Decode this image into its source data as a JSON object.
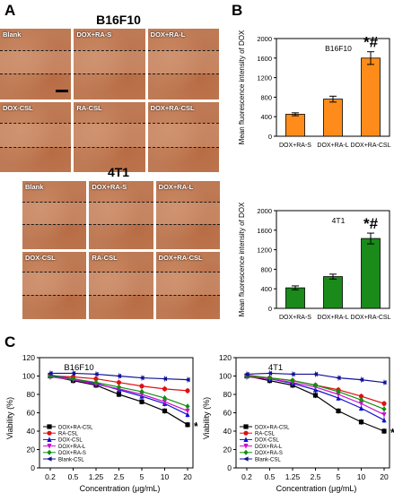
{
  "panels": {
    "A": "A",
    "B": "B",
    "C": "C"
  },
  "wound_healing": {
    "groups": [
      {
        "title": "B16F10",
        "tiles": [
          "Blank",
          "DOX+RA-S",
          "DOX+RA-L",
          "DOX-CSL",
          "RA-CSL",
          "DOX+RA-CSL"
        ]
      },
      {
        "title": "4T1",
        "tiles": [
          "Blank",
          "DOX+RA-S",
          "DOX+RA-L",
          "DOX-CSL",
          "RA-CSL",
          "DOX+RA-CSL"
        ]
      }
    ]
  },
  "chart_data": [
    {
      "type": "bar",
      "title": "B16F10",
      "ylabel": "Mean fluorescence intensity of DOX",
      "categories": [
        "DOX+RA-S",
        "DOX+RA-L",
        "DOX+RA-CSL"
      ],
      "values": [
        450,
        760,
        1600
      ],
      "errors": [
        30,
        60,
        130
      ],
      "ylim": [
        0,
        2000
      ],
      "yticks": [
        0,
        400,
        800,
        1200,
        1600,
        2000
      ],
      "color": "#ff8c1a",
      "annotation": "*#"
    },
    {
      "type": "bar",
      "title": "4T1",
      "ylabel": "Mean fluorescence intensity of DOX",
      "categories": [
        "DOX+RA-S",
        "DOX+RA-L",
        "DOX+RA-CSL"
      ],
      "values": [
        420,
        650,
        1430
      ],
      "errors": [
        40,
        50,
        110
      ],
      "ylim": [
        0,
        2000
      ],
      "yticks": [
        0,
        400,
        800,
        1200,
        1600,
        2000
      ],
      "color": "#1a8a1a",
      "annotation": "*#"
    },
    {
      "type": "line",
      "title": "B16F10",
      "xlabel": "Concentration (μg/mL)",
      "ylabel": "Viability (%)",
      "categories": [
        "0.2",
        "0.5",
        "1.25",
        "2.5",
        "5",
        "10",
        "20"
      ],
      "ylim": [
        0,
        120
      ],
      "yticks": [
        0,
        20,
        40,
        60,
        80,
        100,
        120
      ],
      "annotation": "*",
      "series": [
        {
          "name": "DOX+RA-CSL",
          "color": "#000000",
          "marker": "square",
          "values": [
            100,
            95,
            90,
            80,
            72,
            62,
            47
          ]
        },
        {
          "name": "RA-CSL",
          "color": "#e01010",
          "marker": "circle",
          "values": [
            100,
            99,
            97,
            93,
            89,
            86,
            84
          ]
        },
        {
          "name": "DOX-CSL",
          "color": "#1010d0",
          "marker": "triangle-up",
          "values": [
            101,
            97,
            92,
            85,
            78,
            70,
            58
          ]
        },
        {
          "name": "DOX+RA-L",
          "color": "#cc10cc",
          "marker": "triangle-down",
          "values": [
            99,
            96,
            91,
            86,
            80,
            72,
            62
          ]
        },
        {
          "name": "DOX+RA-S",
          "color": "#109010",
          "marker": "diamond",
          "values": [
            100,
            97,
            93,
            88,
            83,
            76,
            67
          ]
        },
        {
          "name": "Blank-CSL",
          "color": "#10109a",
          "marker": "triangle-left",
          "values": [
            103,
            103,
            102,
            100,
            98,
            97,
            96
          ]
        }
      ]
    },
    {
      "type": "line",
      "title": "4T1",
      "xlabel": "Concentration (μg/mL)",
      "ylabel": "Viability (%)",
      "categories": [
        "0.2",
        "0.5",
        "1.25",
        "2.5",
        "5",
        "10",
        "20"
      ],
      "ylim": [
        0,
        120
      ],
      "yticks": [
        0,
        20,
        40,
        60,
        80,
        100,
        120
      ],
      "annotation": "*",
      "series": [
        {
          "name": "DOX+RA-CSL",
          "color": "#000000",
          "marker": "square",
          "values": [
            100,
            95,
            90,
            79,
            62,
            50,
            40
          ]
        },
        {
          "name": "RA-CSL",
          "color": "#e01010",
          "marker": "circle",
          "values": [
            101,
            98,
            95,
            90,
            85,
            78,
            70
          ]
        },
        {
          "name": "DOX-CSL",
          "color": "#1010d0",
          "marker": "triangle-up",
          "values": [
            100,
            97,
            92,
            85,
            76,
            65,
            52
          ]
        },
        {
          "name": "DOX+RA-L",
          "color": "#cc10cc",
          "marker": "triangle-down",
          "values": [
            99,
            97,
            93,
            88,
            80,
            70,
            58
          ]
        },
        {
          "name": "DOX+RA-S",
          "color": "#109010",
          "marker": "diamond",
          "values": [
            100,
            98,
            95,
            90,
            83,
            74,
            64
          ]
        },
        {
          "name": "Blank-CSL",
          "color": "#10109a",
          "marker": "triangle-left",
          "values": [
            102,
            103,
            102,
            102,
            98,
            96,
            93
          ]
        }
      ]
    }
  ]
}
